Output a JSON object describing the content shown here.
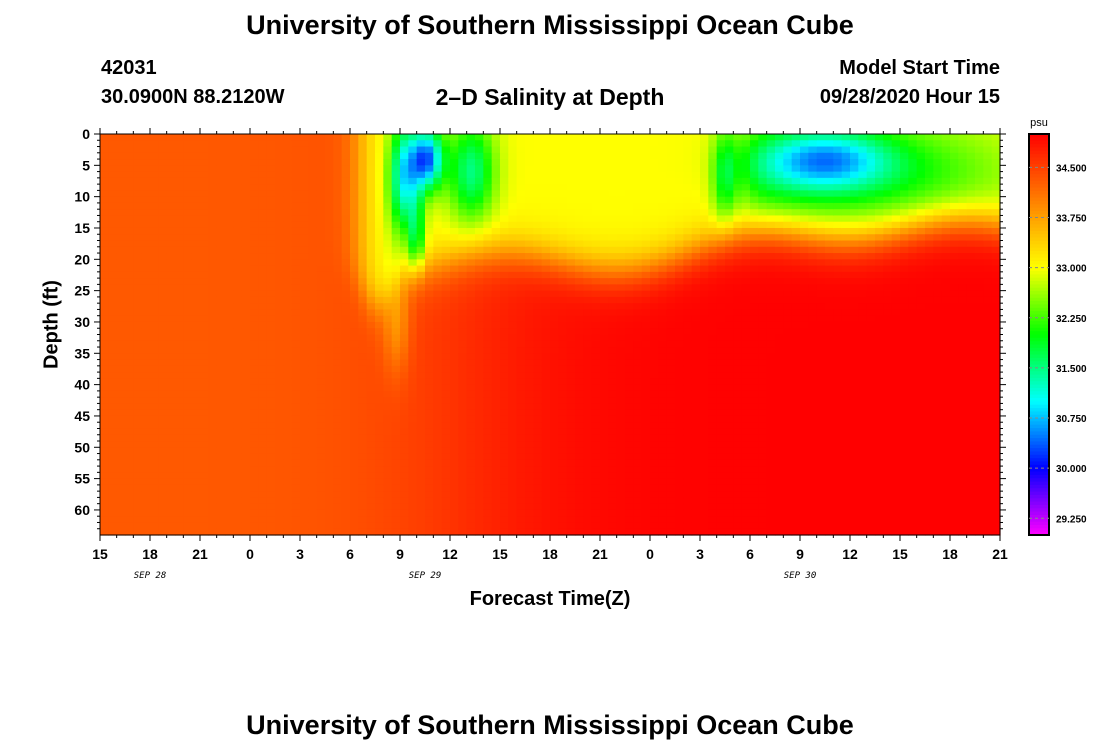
{
  "header": {
    "title_top": "University of Southern Mississippi Ocean Cube",
    "station_id": "42031",
    "location": "30.0900N 88.2120W",
    "plot_title": "2–D Salinity at Depth",
    "model_start_label": "Model Start Time",
    "model_start_value": "09/28/2020 Hour 15"
  },
  "footer": {
    "title_bottom": "University of Southern Mississippi Ocean Cube"
  },
  "chart_data": {
    "type": "heatmap",
    "title": "2–D Salinity at Depth",
    "xlabel": "Forecast Time(Z)",
    "ylabel": "Depth (ft)",
    "x_tick_labels": [
      "15",
      "18",
      "21",
      "0",
      "3",
      "6",
      "9",
      "12",
      "15",
      "18",
      "21",
      "0",
      "3",
      "6",
      "9",
      "12",
      "15",
      "18",
      "21"
    ],
    "x_date_labels": [
      {
        "label": "SEP 28",
        "at_tick": 1
      },
      {
        "label": "SEP 29",
        "at_tick": 6.5
      },
      {
        "label": "SEP 30",
        "at_tick": 14
      }
    ],
    "y_tick_labels": [
      "0",
      "5",
      "10",
      "15",
      "20",
      "25",
      "30",
      "35",
      "40",
      "45",
      "50",
      "55",
      "60"
    ],
    "y_range": [
      0,
      64
    ],
    "x_range_hours": [
      0,
      54
    ],
    "colorbar": {
      "unit": "psu",
      "min": 29.0,
      "max": 35.0,
      "tick_labels": [
        "34.500",
        "33.750",
        "33.000",
        "32.250",
        "31.500",
        "30.750",
        "30.000",
        "29.250"
      ],
      "tick_values": [
        34.5,
        33.75,
        33.0,
        32.25,
        31.5,
        30.75,
        30.0,
        29.25
      ],
      "colors": [
        "#ff00ff",
        "#8000ff",
        "#0000ff",
        "#0080ff",
        "#00ffff",
        "#00ff80",
        "#00ff00",
        "#80ff00",
        "#ffff00",
        "#ffc000",
        "#ff8000",
        "#ff4000",
        "#ff0000"
      ]
    },
    "grid": false
  }
}
